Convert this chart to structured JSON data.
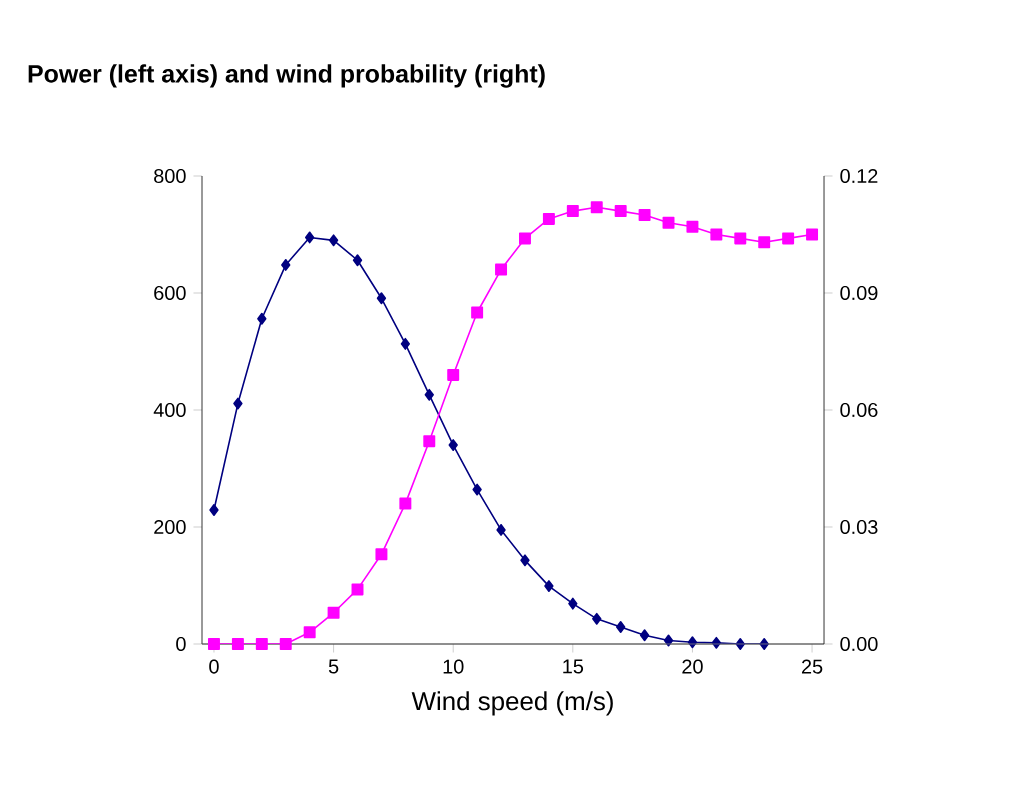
{
  "chart_data": {
    "type": "line",
    "title": "Power (left axis) and wind probability (right)",
    "xlabel": "Wind speed (m/s)",
    "x": [
      0,
      1,
      2,
      3,
      4,
      5,
      6,
      7,
      8,
      9,
      10,
      11,
      12,
      13,
      14,
      15,
      16,
      17,
      18,
      19,
      20,
      21,
      22,
      23,
      24,
      25
    ],
    "series": [
      {
        "color": "#000080",
        "marker": "diamond",
        "x": [
          0,
          1,
          2,
          3,
          4,
          5,
          6,
          7,
          8,
          9,
          10,
          11,
          12,
          13,
          14,
          15,
          16,
          17,
          18,
          19,
          20,
          21,
          22,
          23
        ],
        "values": [
          229,
          411,
          556,
          648,
          695,
          690,
          656,
          591,
          513,
          426,
          340,
          264,
          195,
          143,
          99,
          69,
          43,
          29,
          15,
          6,
          3,
          2,
          0,
          0
        ]
      },
      {
        "color": "#ff00ff",
        "marker": "square",
        "axis": "y2",
        "values": [
          0,
          0,
          0,
          0,
          0.003,
          0.008,
          0.014,
          0.023,
          0.036,
          0.052,
          0.069,
          0.085,
          0.096,
          0.104,
          0.109,
          0.111,
          0.112,
          0.111,
          0.11,
          0.108,
          0.107,
          0.105,
          0.104,
          0.103,
          0.104,
          0.105
        ]
      }
    ],
    "xlim": [
      -0.5,
      25.5
    ],
    "xticks": [
      0,
      5,
      10,
      15,
      20,
      25
    ],
    "ylim": [
      0,
      800
    ],
    "yticks": [
      0,
      200,
      400,
      600,
      800
    ],
    "y2lim": [
      0,
      0.12
    ],
    "y2ticks": [
      {
        "value": 0,
        "label": "0.00"
      },
      {
        "value": 0.03,
        "label": "0.03"
      },
      {
        "value": 0.06,
        "label": "0.06"
      },
      {
        "value": 0.09,
        "label": "0.09"
      },
      {
        "value": 0.12,
        "label": "0.12"
      }
    ],
    "grid": false,
    "line_style": "solid"
  }
}
